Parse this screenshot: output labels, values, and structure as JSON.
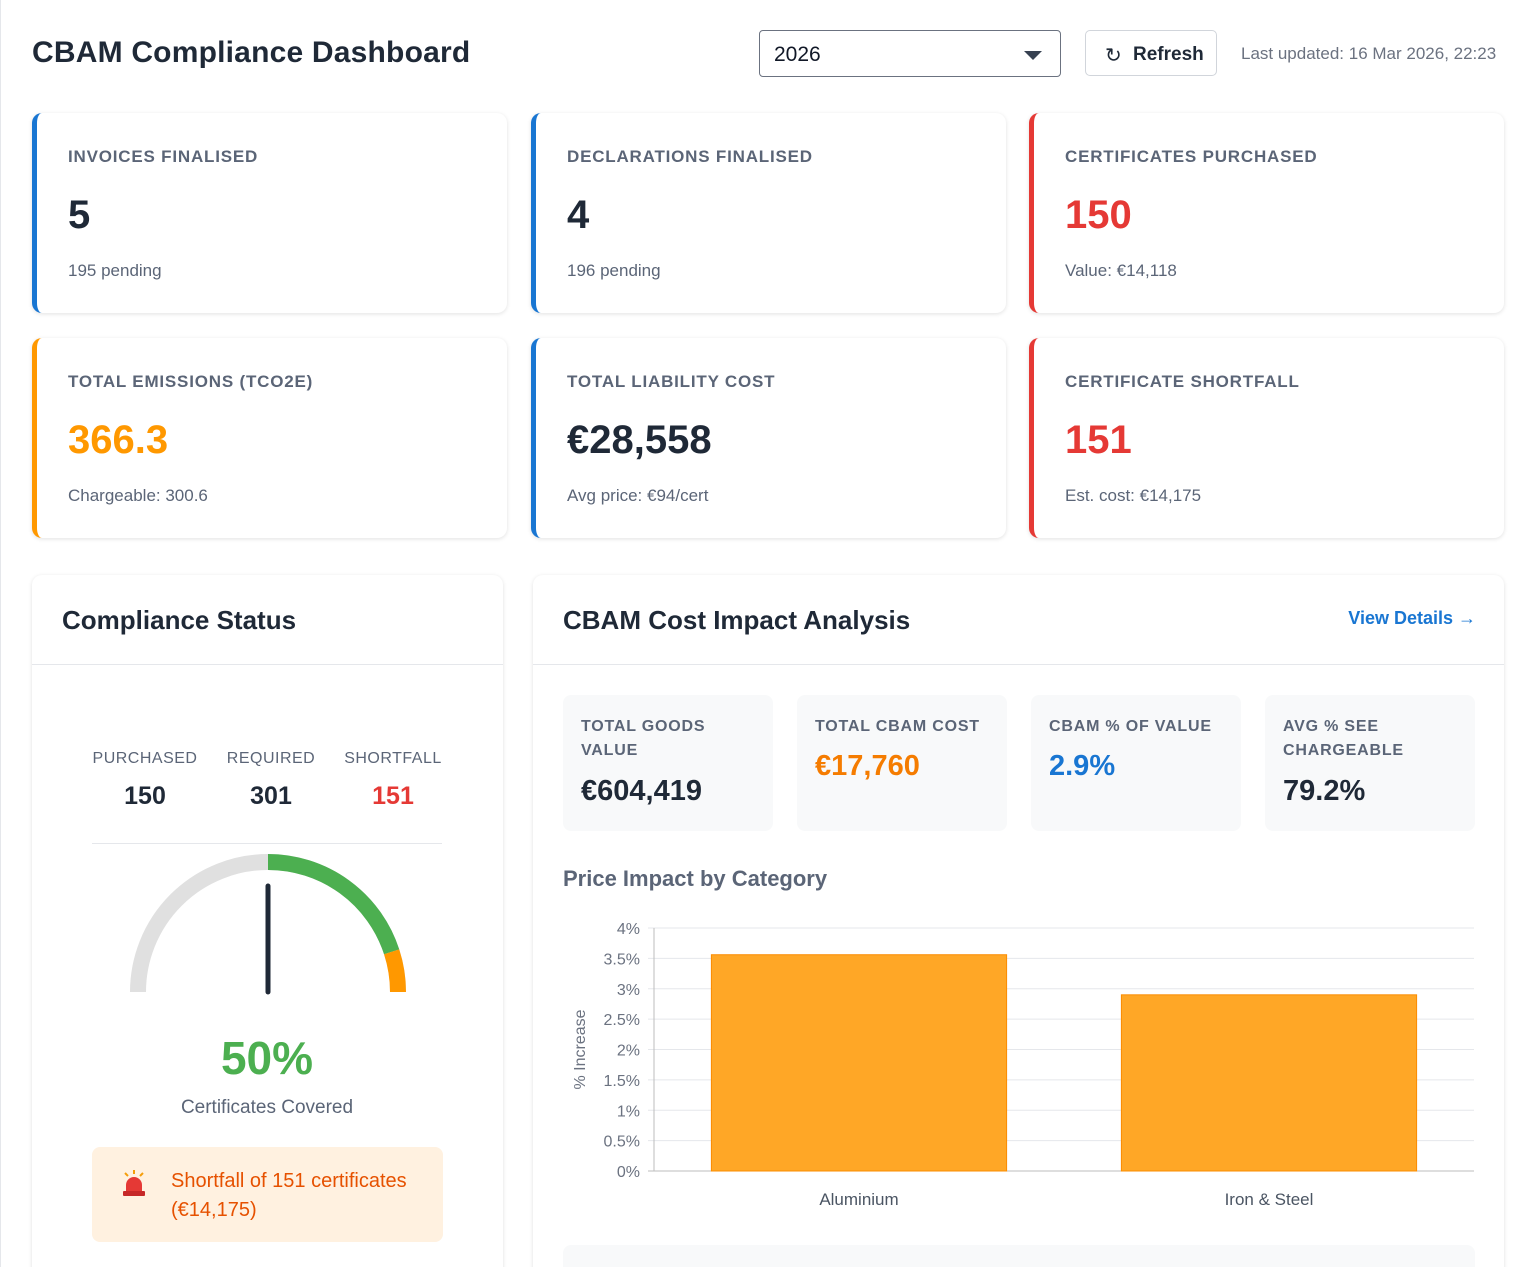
{
  "header": {
    "title": "CBAM Compliance Dashboard",
    "year_selected": "2026",
    "refresh_icon": "refresh-icon",
    "refresh_label": "Refresh",
    "last_updated": "Last updated: 16 Mar 2026, 22:23"
  },
  "kpis": [
    {
      "label": "Invoices Finalised",
      "value": "5",
      "sub": "195 pending",
      "accent": "#1976d2"
    },
    {
      "label": "Declarations Finalised",
      "value": "4",
      "sub": "196 pending",
      "accent": "#1976d2"
    },
    {
      "label": "Certificates Purchased",
      "value": "150",
      "sub": "Value: €14,118",
      "accent": "#e53935"
    },
    {
      "label": "Total Emissions (tCO2e)",
      "value": "366.3",
      "sub": "Chargeable: 300.6",
      "accent": "#ff9800"
    },
    {
      "label": "Total Liability Cost",
      "value": "€28,558",
      "sub": "Avg price: €94/cert",
      "accent": "#1976d2"
    },
    {
      "label": "Certificate Shortfall",
      "value": "151",
      "sub": "Est. cost: €14,175",
      "accent": "#e53935"
    }
  ],
  "compliance": {
    "title": "Compliance Status",
    "purchased_label": "PURCHASED",
    "purchased_value": "150",
    "required_label": "REQUIRED",
    "required_value": "301",
    "shortfall_label": "SHORTFALL",
    "shortfall_value": "151",
    "coverage_fraction": 0.5,
    "coverage_pct": "50%",
    "coverage_label": "Certificates Covered",
    "alert_icon": "siren-icon",
    "alert_text": "Shortfall of 151 certificates (€14,175)",
    "colors": {
      "green": "#4caf50",
      "orange": "#ff9800",
      "track": "#e0e0e0",
      "needle": "#1f2937"
    }
  },
  "impact": {
    "title": "CBAM Cost Impact Analysis",
    "view_details": "View Details →",
    "metrics": [
      {
        "label": "Total Goods Value",
        "value": "€604,419",
        "color": "#1f2937"
      },
      {
        "label": "Total CBAM Cost",
        "value": "€17,760",
        "color": "#f57c00"
      },
      {
        "label": "CBAM % of Value",
        "value": "2.9%",
        "color": "#1976d2"
      },
      {
        "label": "Avg % SEE Chargeable",
        "value": "79.2%",
        "color": "#1f2937"
      }
    ],
    "chart_title": "Price Impact by Category"
  },
  "chart_data": {
    "type": "bar",
    "title": "Price Impact by Category",
    "categories": [
      "Aluminium",
      "Iron & Steel"
    ],
    "values": [
      3.56,
      2.9
    ],
    "ylabel": "% Increase",
    "ylim": [
      0,
      4
    ],
    "yticks": [
      "0%",
      "0.5%",
      "1%",
      "1.5%",
      "2%",
      "2.5%",
      "3%",
      "3.5%",
      "4%"
    ],
    "grid": true,
    "bar_color": "#ffa726"
  }
}
